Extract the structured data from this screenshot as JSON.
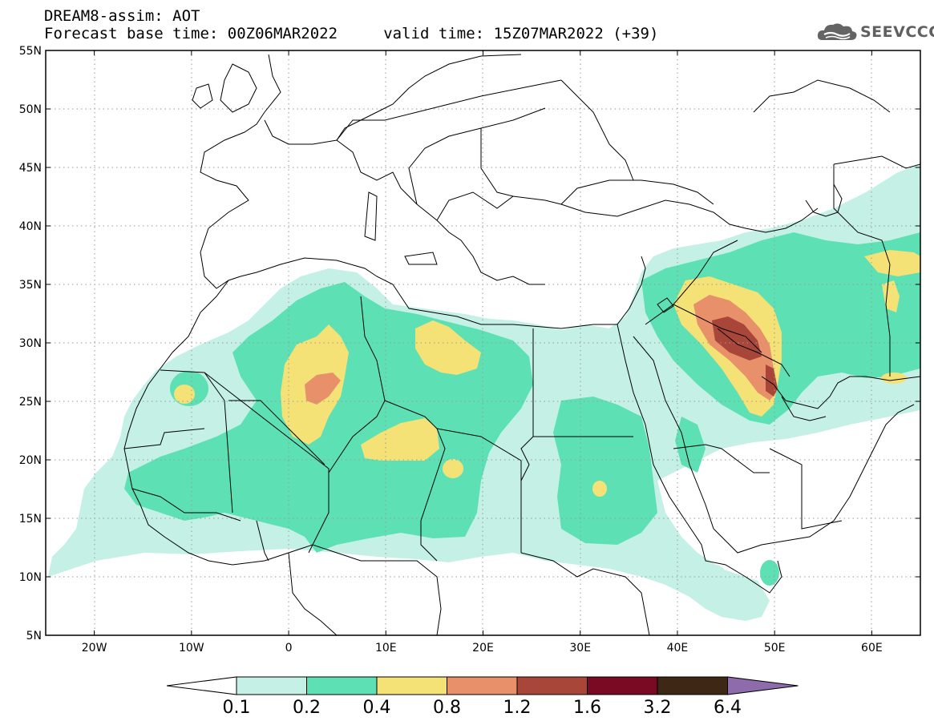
{
  "header": {
    "line1": "DREAM8-assim: AOT",
    "line2": "Forecast base time: 00Z06MAR2022     valid time: 15Z07MAR2022 (+39)",
    "brand": "SEEVCCC",
    "brand_icon": "cloud-logo-icon"
  },
  "map": {
    "lon_range": [
      -25,
      65
    ],
    "lat_range": [
      5,
      55
    ],
    "lat_ticks": [
      {
        "v": 55,
        "t": "55N"
      },
      {
        "v": 50,
        "t": "50N"
      },
      {
        "v": 45,
        "t": "45N"
      },
      {
        "v": 40,
        "t": "40N"
      },
      {
        "v": 35,
        "t": "35N"
      },
      {
        "v": 30,
        "t": "30N"
      },
      {
        "v": 25,
        "t": "25N"
      },
      {
        "v": 20,
        "t": "20N"
      },
      {
        "v": 15,
        "t": "15N"
      },
      {
        "v": 10,
        "t": "10N"
      },
      {
        "v": 5,
        "t": "5N"
      }
    ],
    "lon_ticks": [
      {
        "v": -20,
        "t": "20W"
      },
      {
        "v": -10,
        "t": "10W"
      },
      {
        "v": 0,
        "t": "0"
      },
      {
        "v": 10,
        "t": "10E"
      },
      {
        "v": 20,
        "t": "20E"
      },
      {
        "v": 30,
        "t": "30E"
      },
      {
        "v": 40,
        "t": "40E"
      },
      {
        "v": 50,
        "t": "50E"
      },
      {
        "v": 60,
        "t": "60E"
      }
    ],
    "coastline_color": "#000000"
  },
  "colorbar": {
    "labels": [
      "0.1",
      "0.2",
      "0.4",
      "0.8",
      "1.2",
      "1.6",
      "3.2",
      "6.4"
    ],
    "colors": [
      "#ffffff",
      "#c4f0e6",
      "#5de0b4",
      "#f5e277",
      "#e8906a",
      "#a8463a",
      "#7a0a24",
      "#3f2715",
      "#8e6bab"
    ]
  }
}
